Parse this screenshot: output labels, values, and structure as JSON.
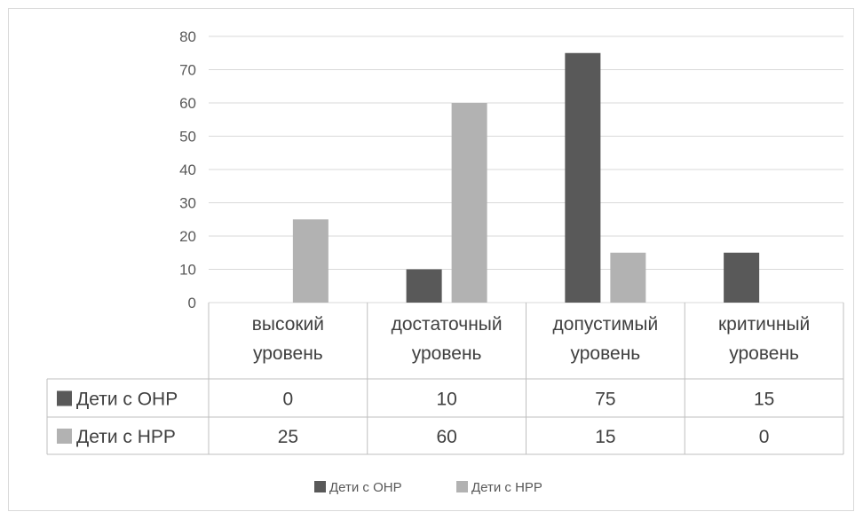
{
  "chart_data": {
    "type": "bar",
    "categories": [
      [
        "высокий",
        "уровень"
      ],
      [
        "достаточный",
        "уровень"
      ],
      [
        "допустимый",
        "уровень"
      ],
      [
        "критичный",
        "уровень"
      ]
    ],
    "series": [
      {
        "name": "Дети с ОНР",
        "values": [
          0,
          10,
          75,
          15
        ],
        "color": "#595959"
      },
      {
        "name": "Дети с НРР",
        "values": [
          25,
          60,
          15,
          0
        ],
        "color": "#b2b2b2"
      }
    ],
    "y_ticks": [
      "0",
      "10",
      "20",
      "30",
      "40",
      "50",
      "60",
      "70",
      "80"
    ],
    "ylim": [
      0,
      80
    ],
    "grid": true,
    "data_table": true,
    "legend_position": "bottom",
    "gridline_color": "#d9d9d9",
    "table_border_color": "#bfbfbf"
  }
}
